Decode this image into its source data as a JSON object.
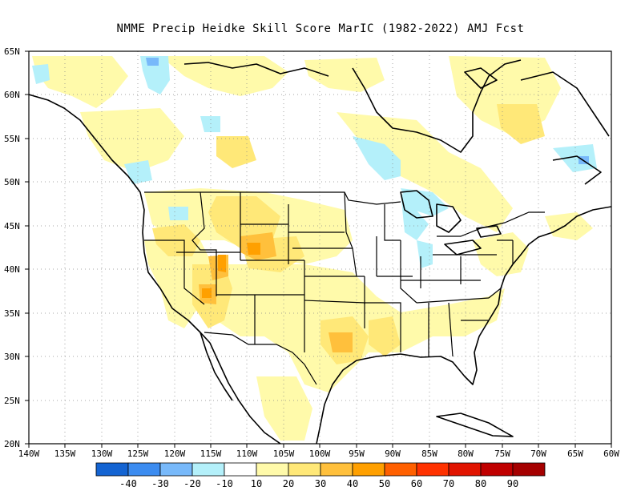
{
  "title": "NMME Precip Heidke Skill Score MarIC (1982-2022) AMJ Fcst",
  "lat_labels": [
    "65N",
    "60N",
    "55N",
    "50N",
    "45N",
    "40N",
    "35N",
    "30N",
    "25N",
    "20N"
  ],
  "lon_labels": [
    "140W",
    "135W",
    "130W",
    "125W",
    "120W",
    "115W",
    "110W",
    "105W",
    "100W",
    "95W",
    "90W",
    "85W",
    "80W",
    "75W",
    "70W",
    "65W",
    "60W"
  ],
  "colorbar": {
    "colors": [
      "#1464d2",
      "#3c8cf0",
      "#78b9fa",
      "#b4f0fa",
      "#ffffff",
      "#fffaaa",
      "#ffe878",
      "#ffc03c",
      "#ffa000",
      "#ff6000",
      "#ff3200",
      "#e11400",
      "#c00000",
      "#a50000"
    ],
    "labels": [
      "-40",
      "-30",
      "-20",
      "-10",
      "10",
      "20",
      "30",
      "40",
      "50",
      "60",
      "70",
      "80",
      "90"
    ]
  },
  "map": {
    "projection": "cylindrical equidistant",
    "lon_range": [
      -140,
      -60
    ],
    "lat_range": [
      20,
      65
    ],
    "gridlines": "dotted"
  }
}
